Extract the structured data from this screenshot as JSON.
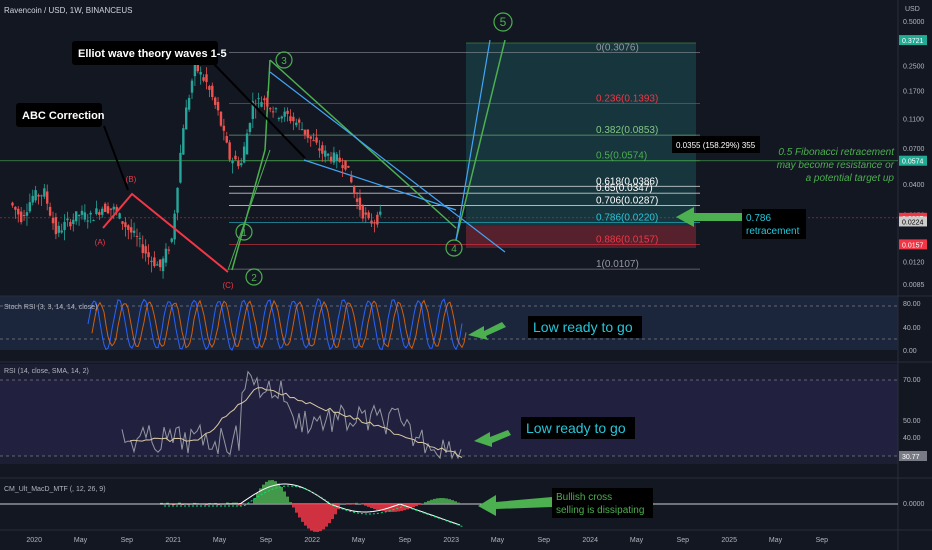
{
  "header": {
    "title": "Ravencoin / USD, 1W, BINANCEUS"
  },
  "price_axis": {
    "currency": "USD",
    "ticks": [
      "0.5000",
      "0.2500",
      "0.1700",
      "0.1100",
      "0.0700",
      "0.0400",
      "0.0250",
      "0.0120",
      "0.0085"
    ],
    "tags": [
      {
        "text": "0.3721",
        "color": "#22ab94"
      },
      {
        "text": "0.0574",
        "color": "#22ab94"
      },
      {
        "text": "0.0237",
        "color": "#f23645"
      },
      {
        "text": "0.0224",
        "color": "#cccccc"
      },
      {
        "text": "0.0157",
        "color": "#f23645"
      }
    ]
  },
  "time_axis": {
    "labels": [
      "2020",
      "May",
      "Sep",
      "2021",
      "May",
      "Sep",
      "2022",
      "May",
      "Sep",
      "2023",
      "May",
      "Sep",
      "2024",
      "May",
      "Sep",
      "2025",
      "May",
      "Sep"
    ]
  },
  "fib_levels": [
    {
      "label": "0(0.3076)",
      "color": "#9598a1"
    },
    {
      "label": "0.236(0.1393)",
      "color": "#f23645"
    },
    {
      "label": "0.382(0.0853)",
      "color": "#81c784"
    },
    {
      "label": "0.5(0.0574)",
      "color": "#4caf50"
    },
    {
      "label": "0.618(0.0386)",
      "color": "#ffffff"
    },
    {
      "label": "0.65(0.0347)",
      "color": "#ffffff"
    },
    {
      "label": "0.706(0.0287)",
      "color": "#ffffff"
    },
    {
      "label": "0.786(0.0220)",
      "color": "#26c6da"
    },
    {
      "label": "0.886(0.0157)",
      "color": "#f23645"
    },
    {
      "label": "1(0.0107)",
      "color": "#9598a1"
    }
  ],
  "annotations": {
    "elliot": "Elliot wave theory waves 1-5",
    "abc": "ABC Correction",
    "measure": "0.0355 (158.29%) 355",
    "fib_note": [
      "0.5 Fibonacci retracement",
      "may become resistance or",
      "a potential target up"
    ],
    "retracement": [
      "0.786",
      "retracement"
    ],
    "stoch_note": "Low ready to go",
    "rsi_note": "Low ready to go",
    "macd_note": [
      "Bullish cross",
      "selling is dissipating"
    ]
  },
  "wave_labels": {
    "circled": [
      "1",
      "2",
      "3",
      "4",
      "5"
    ],
    "abc": [
      "(A)",
      "(B)",
      "(C)"
    ]
  },
  "panes": {
    "stoch": {
      "label": "Stoch RSI (3, 3, 14, 14, close)",
      "ticks": [
        "80.00",
        "40.00",
        "0.00"
      ]
    },
    "rsi": {
      "label": "RSI (14, close, SMA, 14, 2)",
      "ticks": [
        "70.00",
        "50.00",
        "40.00"
      ],
      "tag": "30.77"
    },
    "macd": {
      "label": "CM_Ult_MacD_MTF (, 12, 26, 9)",
      "ticks": [
        "0.0000"
      ]
    }
  },
  "chart_data": {
    "type": "line",
    "title": "Ravencoin / USD, 1W, BINANCEUS",
    "scale": "log",
    "xlabel": "",
    "ylabel": "USD",
    "ylim": [
      0.0085,
      0.5
    ],
    "x_range": [
      "2019-10",
      "2025-09"
    ],
    "series": [
      {
        "points": [
          [
            "2019-11",
            0.03
          ],
          [
            "2019-12",
            0.024
          ],
          [
            "2020-01",
            0.033
          ],
          [
            "2020-02",
            0.035
          ],
          [
            "2020-03",
            0.019
          ],
          [
            "2020-04",
            0.022
          ],
          [
            "2020-05",
            0.025
          ],
          [
            "2020-06",
            0.024
          ],
          [
            "2020-07",
            0.028
          ],
          [
            "2020-08",
            0.027
          ],
          [
            "2020-09",
            0.021
          ],
          [
            "2020-10",
            0.017
          ],
          [
            "2020-11",
            0.013
          ],
          [
            "2020-12",
            0.011
          ],
          [
            "2021-01",
            0.017
          ],
          [
            "2021-02",
            0.1
          ],
          [
            "2021-03",
            0.25
          ],
          [
            "2021-04",
            0.19
          ],
          [
            "2021-05",
            0.12
          ],
          [
            "2021-06",
            0.06
          ],
          [
            "2021-07",
            0.055
          ],
          [
            "2021-08",
            0.14
          ],
          [
            "2021-09",
            0.15
          ],
          [
            "2021-10",
            0.12
          ],
          [
            "2021-11",
            0.115
          ],
          [
            "2021-12",
            0.1
          ],
          [
            "2022-01",
            0.08
          ],
          [
            "2022-02",
            0.065
          ],
          [
            "2022-03",
            0.06
          ],
          [
            "2022-04",
            0.055
          ],
          [
            "2022-05",
            0.03
          ],
          [
            "2022-06",
            0.022
          ],
          [
            "2022-07",
            0.024
          ]
        ]
      }
    ]
  },
  "colors": {
    "bg": "#131722",
    "up": "#26a69a",
    "down": "#ef5350",
    "grid": "#2a2e39"
  }
}
